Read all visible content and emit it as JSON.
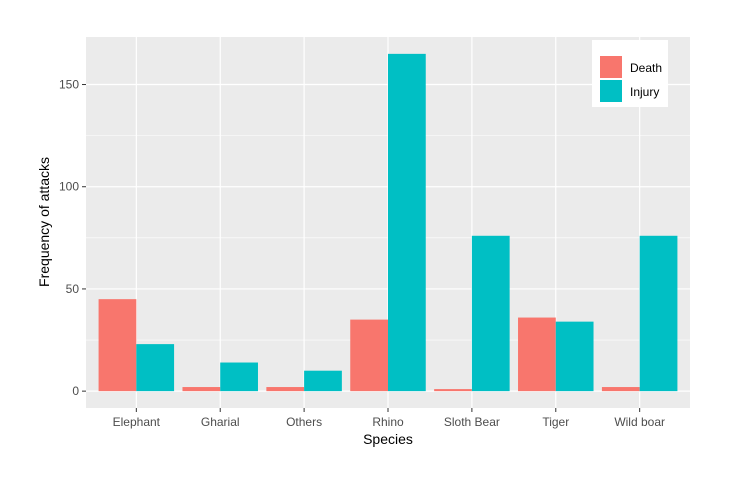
{
  "chart_data": {
    "type": "bar",
    "categories": [
      "Elephant",
      "Gharial",
      "Others",
      "Rhino",
      "Sloth Bear",
      "Tiger",
      "Wild boar"
    ],
    "series": [
      {
        "name": "Death",
        "values": [
          45,
          2,
          2,
          35,
          1,
          36,
          2
        ],
        "color": "#F8766D"
      },
      {
        "name": "Injury",
        "values": [
          23,
          14,
          10,
          165,
          76,
          34,
          76
        ],
        "color": "#00BFC4"
      }
    ],
    "title": "",
    "xlabel": "Species",
    "ylabel": "Frequency of attacks",
    "ylim": [
      -8.25,
      173.25
    ],
    "yticks": [
      0,
      50,
      100,
      150
    ],
    "grid": true,
    "legend_position": "top-right",
    "panel_background": "#EBEBEB",
    "gridline_color": "#FFFFFF"
  }
}
